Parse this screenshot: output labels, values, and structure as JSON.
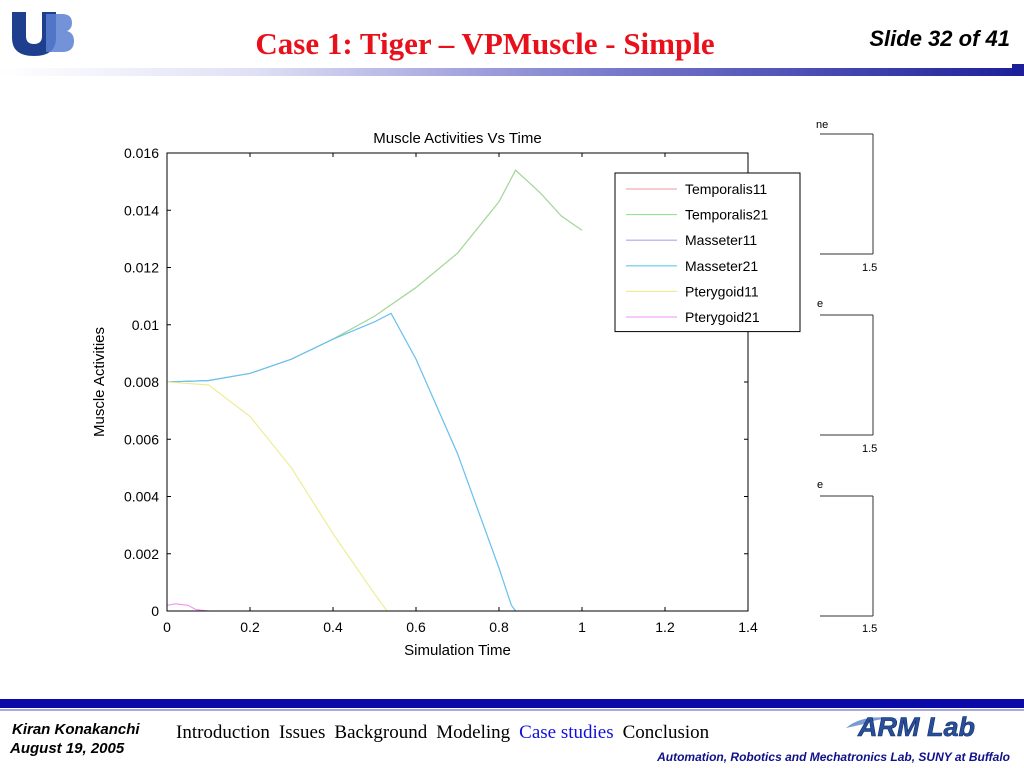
{
  "header": {
    "logo_name": "UB",
    "title": "Case 1: Tiger – VPMuscle - Simple",
    "slide_number": "Slide 32 of 41"
  },
  "footer": {
    "author": "Kiran Konakanchi",
    "date": "August 19, 2005",
    "nav": [
      {
        "label": "Introduction",
        "active": false
      },
      {
        "label": "Issues",
        "active": false
      },
      {
        "label": "Background",
        "active": false
      },
      {
        "label": "Modeling",
        "active": false
      },
      {
        "label": "Case studies",
        "active": true
      },
      {
        "label": "Conclusion",
        "active": false
      }
    ],
    "lab_logo": "ARM Lab",
    "lab_name": "Automation, Robotics and Mechatronics Lab, SUNY at Buffalo"
  },
  "background_fragments": [
    {
      "title_fragment": "ne",
      "tick_label": "1.5"
    },
    {
      "title_fragment": "e",
      "tick_label": "1.5"
    },
    {
      "title_fragment": "e",
      "tick_label": "1.5"
    }
  ],
  "chart_data": {
    "type": "line",
    "title": "Muscle Activities Vs Time",
    "xlabel": "Simulation Time",
    "ylabel": "Muscle Activities",
    "xlim": [
      0,
      1.4
    ],
    "ylim": [
      0,
      0.016
    ],
    "xticks": [
      0,
      0.2,
      0.4,
      0.6,
      0.8,
      1,
      1.2,
      1.4
    ],
    "xtick_labels": [
      "0",
      "0.2",
      "0.4",
      "0.6",
      "0.8",
      "1",
      "1.2",
      "1.4"
    ],
    "yticks": [
      0,
      0.002,
      0.004,
      0.006,
      0.008,
      0.01,
      0.012,
      0.014,
      0.016
    ],
    "ytick_labels": [
      "0",
      "0.002",
      "0.004",
      "0.006",
      "0.008",
      "0.01",
      "0.012",
      "0.014",
      "0.016"
    ],
    "grid": false,
    "legend_position": "top-right",
    "series": [
      {
        "name": "Temporalis11",
        "color": "#f29a9a",
        "x": [
          0,
          0.1,
          0.2,
          0.3,
          0.4,
          0.5,
          0.6,
          0.7,
          0.8,
          0.84,
          0.9,
          0.95,
          1.0
        ],
        "y": [
          0.008,
          0.00805,
          0.0083,
          0.0088,
          0.0095,
          0.0103,
          0.0113,
          0.0125,
          0.0143,
          0.0154,
          0.0146,
          0.0138,
          0.0133
        ]
      },
      {
        "name": "Temporalis21",
        "color": "#9ae09a",
        "x": [
          0,
          0.1,
          0.2,
          0.3,
          0.4,
          0.5,
          0.6,
          0.7,
          0.8,
          0.84,
          0.9,
          0.95,
          1.0
        ],
        "y": [
          0.008,
          0.00805,
          0.0083,
          0.0088,
          0.0095,
          0.0103,
          0.0113,
          0.0125,
          0.0143,
          0.0154,
          0.0146,
          0.0138,
          0.0133
        ]
      },
      {
        "name": "Masseter11",
        "color": "#a9a9f2",
        "x": [
          0,
          0.1,
          0.2,
          0.3,
          0.4,
          0.5,
          0.54,
          0.6,
          0.7,
          0.8,
          0.83,
          0.84
        ],
        "y": [
          0.008,
          0.00805,
          0.0083,
          0.0088,
          0.0095,
          0.0101,
          0.0104,
          0.0088,
          0.0055,
          0.0015,
          0.0002,
          0
        ]
      },
      {
        "name": "Masseter21",
        "color": "#63c6f0",
        "x": [
          0,
          0.1,
          0.2,
          0.3,
          0.4,
          0.5,
          0.54,
          0.6,
          0.7,
          0.8,
          0.83,
          0.84
        ],
        "y": [
          0.008,
          0.00805,
          0.0083,
          0.0088,
          0.0095,
          0.0101,
          0.0104,
          0.0088,
          0.0055,
          0.0015,
          0.0002,
          0
        ]
      },
      {
        "name": "Pterygoid11",
        "color": "#ecec8e",
        "x": [
          0,
          0.1,
          0.2,
          0.3,
          0.4,
          0.5,
          0.53
        ],
        "y": [
          0.008,
          0.0079,
          0.0068,
          0.005,
          0.0027,
          0.0006,
          0
        ]
      },
      {
        "name": "Pterygoid21",
        "color": "#f292f2",
        "x": [
          0,
          0.02,
          0.05,
          0.07,
          0.1,
          1.4
        ],
        "y": [
          0.0002,
          0.00025,
          0.0002,
          5e-05,
          0,
          0
        ]
      }
    ]
  }
}
